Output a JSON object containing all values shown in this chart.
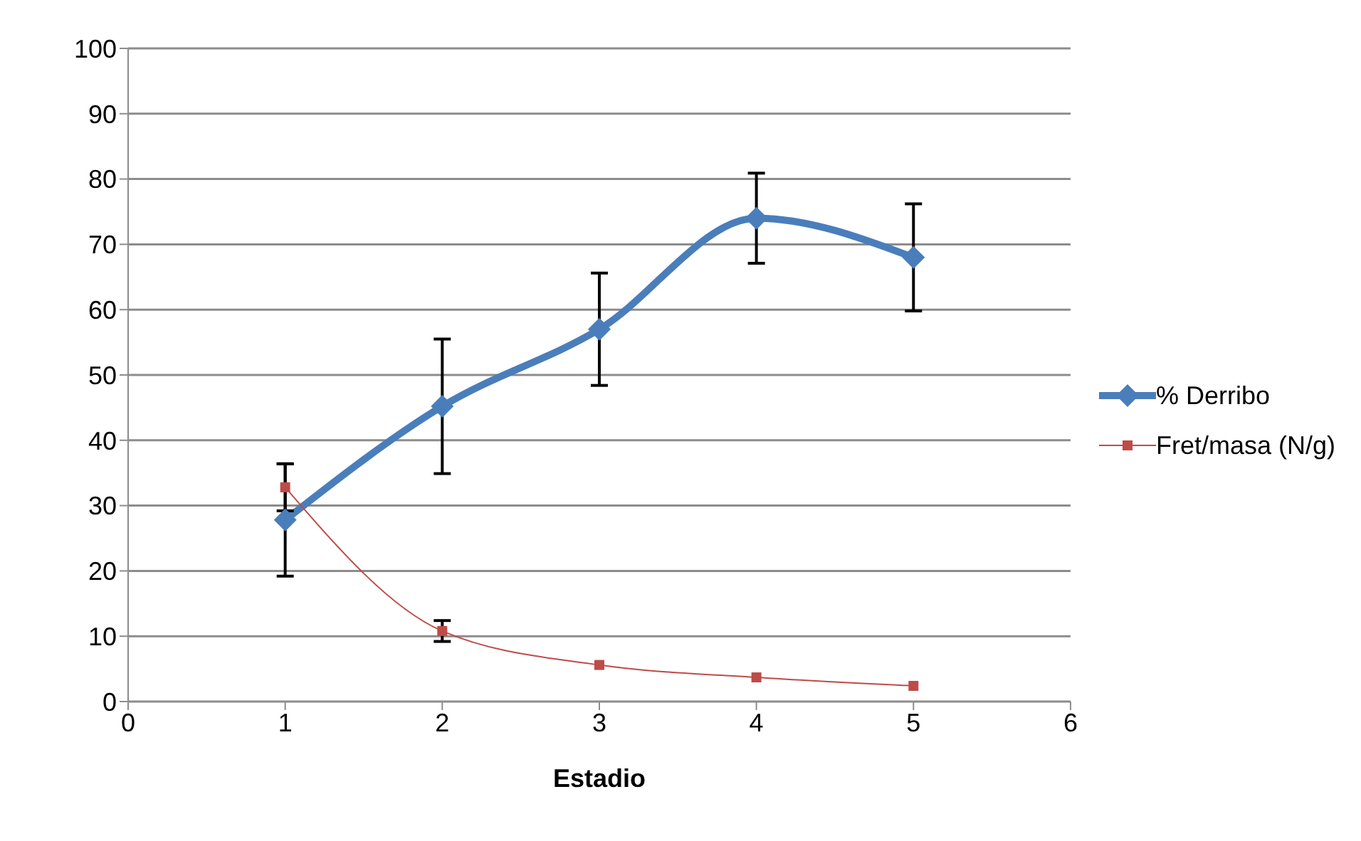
{
  "chart_data": {
    "type": "line",
    "xlabel": "Estadio",
    "x": [
      1,
      2,
      3,
      4,
      5
    ],
    "series": [
      {
        "name": "% Derribo",
        "color": "#4a7ebb",
        "marker": "diamond",
        "values": [
          27.8,
          45.2,
          57,
          74,
          68
        ],
        "errors": [
          8.6,
          10.3,
          8.6,
          6.9,
          8.2
        ]
      },
      {
        "name": "Fret/masa (N/g)",
        "color": "#be4b48",
        "marker": "square",
        "values": [
          32.8,
          10.8,
          5.6,
          3.7,
          2.4
        ],
        "errors": [
          3.6,
          1.6,
          null,
          null,
          null
        ]
      }
    ],
    "xlim": [
      0,
      6
    ],
    "xticks": [
      0,
      1,
      2,
      3,
      4,
      5,
      6
    ],
    "ylim": [
      0,
      100
    ],
    "yticks": [
      0,
      10,
      20,
      30,
      40,
      50,
      60,
      70,
      80,
      90,
      100
    ],
    "grid": "y",
    "legend": "right"
  }
}
